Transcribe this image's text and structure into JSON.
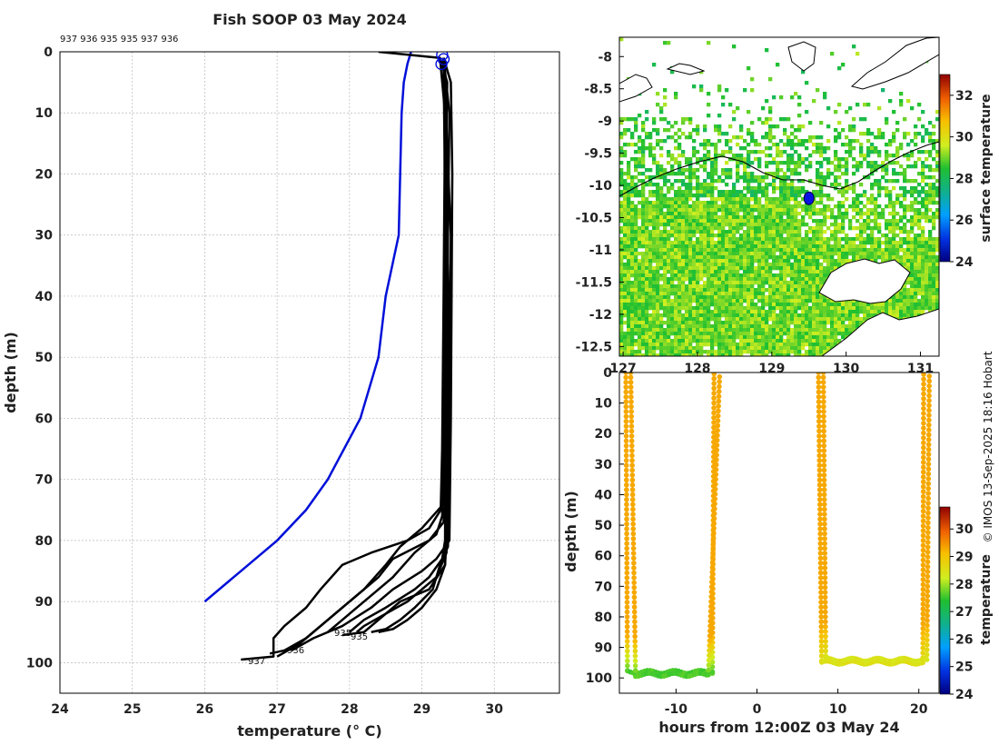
{
  "chart_data": [
    {
      "type": "line",
      "title": "Fish SOOP 03 May 2024",
      "xlabel": "temperature (° C)",
      "ylabel": "depth (m)",
      "xlim": [
        24,
        30.9
      ],
      "ylim": [
        105,
        0
      ],
      "xticks": [
        "24",
        "25",
        "26",
        "27",
        "28",
        "29",
        "30"
      ],
      "yticks": [
        "0",
        "10",
        "20",
        "30",
        "40",
        "50",
        "60",
        "70",
        "80",
        "90",
        "100"
      ],
      "deployment_ids": "937 936 935 935 937 936",
      "end_labels": [
        "937",
        "936",
        "935",
        "935"
      ],
      "series": [
        {
          "name": "climatology",
          "color": "#0010d8",
          "points": [
            [
              28.85,
              0
            ],
            [
              28.8,
              2
            ],
            [
              28.75,
              5
            ],
            [
              28.72,
              10
            ],
            [
              28.7,
              20
            ],
            [
              28.68,
              30
            ],
            [
              28.5,
              40
            ],
            [
              28.4,
              50
            ],
            [
              28.15,
              60
            ],
            [
              27.7,
              70
            ],
            [
              27.4,
              75
            ],
            [
              27.0,
              80
            ],
            [
              26.5,
              85
            ],
            [
              26.0,
              90
            ]
          ]
        },
        {
          "name": "profiles",
          "color": "#000000",
          "profiles": [
            [
              [
                28.4,
                0
              ],
              [
                29.25,
                1
              ],
              [
                29.35,
                5
              ],
              [
                29.33,
                20
              ],
              [
                29.32,
                40
              ],
              [
                29.31,
                60
              ],
              [
                29.3,
                74
              ],
              [
                29.0,
                78
              ],
              [
                28.7,
                81
              ],
              [
                28.5,
                84
              ],
              [
                28.2,
                88
              ],
              [
                27.9,
                91
              ],
              [
                27.6,
                94
              ],
              [
                27.4,
                96
              ],
              [
                27.1,
                98
              ],
              [
                26.9,
                98.5
              ]
            ],
            [
              [
                29.3,
                1
              ],
              [
                29.38,
                10
              ],
              [
                29.36,
                30
              ],
              [
                29.35,
                50
              ],
              [
                29.33,
                70
              ],
              [
                29.3,
                77
              ],
              [
                29.1,
                80
              ],
              [
                28.6,
                83
              ],
              [
                28.4,
                86
              ],
              [
                28.0,
                90
              ],
              [
                27.8,
                92
              ],
              [
                27.5,
                95
              ],
              [
                27.3,
                97
              ],
              [
                27.0,
                99
              ]
            ],
            [
              [
                29.3,
                1
              ],
              [
                29.4,
                5
              ],
              [
                29.42,
                20
              ],
              [
                29.4,
                60
              ],
              [
                29.38,
                80
              ],
              [
                29.2,
                83
              ],
              [
                29.0,
                85
              ],
              [
                28.6,
                88
              ],
              [
                28.3,
                91
              ],
              [
                27.9,
                94
              ],
              [
                27.5,
                96
              ],
              [
                27.2,
                98
              ]
            ],
            [
              [
                29.25,
                1
              ],
              [
                29.32,
                10
              ],
              [
                29.3,
                40
              ],
              [
                29.28,
                65
              ],
              [
                29.26,
                75
              ],
              [
                29.1,
                78
              ],
              [
                28.8,
                80
              ],
              [
                28.3,
                82
              ],
              [
                27.9,
                84
              ],
              [
                27.6,
                88
              ],
              [
                27.4,
                91
              ],
              [
                27.1,
                94
              ],
              [
                26.95,
                96
              ],
              [
                26.95,
                99
              ],
              [
                26.5,
                99.5
              ]
            ],
            [
              [
                29.3,
                1
              ],
              [
                29.34,
                15
              ],
              [
                29.33,
                50
              ],
              [
                29.32,
                80
              ],
              [
                29.28,
                83
              ],
              [
                29.1,
                86
              ],
              [
                28.9,
                88
              ],
              [
                28.5,
                91
              ],
              [
                28.2,
                93
              ],
              [
                28.0,
                95
              ]
            ],
            [
              [
                29.3,
                1
              ],
              [
                29.36,
                20
              ],
              [
                29.35,
                60
              ],
              [
                29.34,
                82
              ],
              [
                29.2,
                86
              ],
              [
                29.0,
                88
              ],
              [
                28.8,
                90
              ],
              [
                28.5,
                92
              ],
              [
                28.2,
                94
              ],
              [
                28.1,
                95
              ]
            ],
            [
              [
                29.3,
                1
              ],
              [
                29.4,
                30
              ],
              [
                29.38,
                70
              ],
              [
                29.36,
                81
              ],
              [
                29.25,
                84
              ],
              [
                29.15,
                88
              ],
              [
                28.9,
                91
              ],
              [
                28.7,
                93
              ],
              [
                28.5,
                94.5
              ],
              [
                28.3,
                95
              ]
            ],
            [
              [
                29.3,
                1
              ],
              [
                29.32,
                25
              ],
              [
                29.3,
                55
              ],
              [
                29.28,
                76
              ],
              [
                29.2,
                79
              ],
              [
                28.9,
                82
              ],
              [
                28.6,
                86
              ],
              [
                28.3,
                89
              ],
              [
                28.0,
                92
              ],
              [
                27.8,
                94
              ],
              [
                27.7,
                95
              ]
            ],
            [
              [
                29.3,
                1
              ],
              [
                29.35,
                35
              ],
              [
                29.33,
                72
              ],
              [
                29.32,
                84
              ],
              [
                29.2,
                88
              ],
              [
                29.0,
                91
              ],
              [
                28.8,
                93
              ],
              [
                28.6,
                94.5
              ],
              [
                28.4,
                95
              ]
            ],
            [
              [
                29.3,
                1
              ],
              [
                29.37,
                40
              ],
              [
                29.35,
                78
              ],
              [
                29.32,
                84
              ],
              [
                29.1,
                88
              ],
              [
                28.7,
                90
              ],
              [
                28.4,
                93
              ],
              [
                28.2,
                95
              ],
              [
                27.9,
                95.5
              ]
            ]
          ]
        }
      ]
    },
    {
      "type": "heatmap",
      "title": "",
      "xlabel": "",
      "ylabel": "",
      "xlim": [
        126.95,
        131.25
      ],
      "ylim": [
        -12.65,
        -7.7
      ],
      "xticks": [
        "127",
        "128",
        "129",
        "130",
        "131"
      ],
      "yticks": [
        "-8",
        "-8.5",
        "-9",
        "-9.5",
        "-10",
        "-10.5",
        "-11",
        "-11.5",
        "-12",
        "-12.5"
      ],
      "colorbar_label": "surface temperature",
      "colorbar_range": [
        24,
        33
      ],
      "colorbar_ticks": [
        "24",
        "26",
        "28",
        "30",
        "32"
      ],
      "position_marker": [
        129.5,
        -10.2
      ]
    },
    {
      "type": "scatter",
      "xlabel": "hours from 12:00Z 03 May 24",
      "ylabel": "depth (m)",
      "xlim": [
        -17,
        22.5
      ],
      "ylim": [
        105,
        0
      ],
      "xticks": [
        "-10",
        "0",
        "10",
        "20"
      ],
      "yticks": [
        "0",
        "10",
        "20",
        "30",
        "40",
        "50",
        "60",
        "70",
        "80",
        "90",
        "100"
      ],
      "colorbar_label": "temperature",
      "colorbar_range": [
        24,
        30.8
      ],
      "colorbar_ticks": [
        "24",
        "25",
        "26",
        "27",
        "28",
        "29",
        "30"
      ],
      "casts": [
        {
          "down_hour": -16.2,
          "bottom_start": -16.0,
          "bottom_end": -5.5,
          "bottom_depth": 98,
          "up_hour": -5.3,
          "surface_temp": 29.3,
          "bottom_temp": 27.6
        },
        {
          "down_hour": -15.6,
          "bottom_start": -15.0,
          "bottom_end": -6.0,
          "bottom_depth": 99,
          "up_hour": -4.6,
          "surface_temp": 29.3,
          "bottom_temp": 27.6
        },
        {
          "down_hour": 7.6,
          "bottom_start": 8.0,
          "bottom_end": 20.5,
          "bottom_depth": 95,
          "up_hour": 20.6,
          "surface_temp": 29.3,
          "bottom_temp": 28.5
        },
        {
          "down_hour": 8.2,
          "bottom_start": 8.5,
          "bottom_end": 21.0,
          "bottom_depth": 94,
          "up_hour": 21.3,
          "surface_temp": 29.3,
          "bottom_temp": 28.4
        }
      ]
    }
  ],
  "credit": "© IMOS 13-Sep-2025 18:16 Hobart",
  "colors": {
    "profile": "#000000",
    "climatology": "#0010d8",
    "land": "#ffffff",
    "coast": "#000000"
  }
}
